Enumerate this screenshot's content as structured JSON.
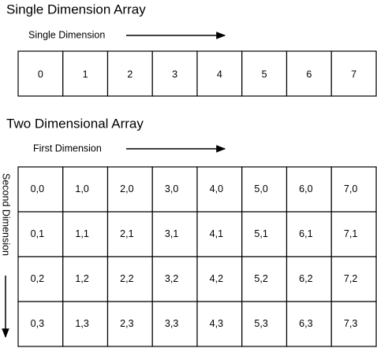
{
  "single": {
    "title": "Single Dimension Array",
    "label": "Single Dimension",
    "cells": [
      "0",
      "1",
      "2",
      "3",
      "4",
      "5",
      "6",
      "7"
    ]
  },
  "two": {
    "title": "Two Dimensional Array",
    "first_label": "First Dimension",
    "second_label": "Second Dimension",
    "rows": [
      [
        "0,0",
        "1,0",
        "2,0",
        "3,0",
        "4,0",
        "5,0",
        "6,0",
        "7,0"
      ],
      [
        "0,1",
        "1,1",
        "2,1",
        "3,1",
        "4,1",
        "5,1",
        "6,1",
        "7,1"
      ],
      [
        "0,2",
        "1,2",
        "2,2",
        "3,2",
        "4,2",
        "5,2",
        "6,2",
        "7,2"
      ],
      [
        "0,3",
        "1,3",
        "2,3",
        "3,3",
        "4,3",
        "5,3",
        "6,3",
        "7,3"
      ]
    ]
  }
}
